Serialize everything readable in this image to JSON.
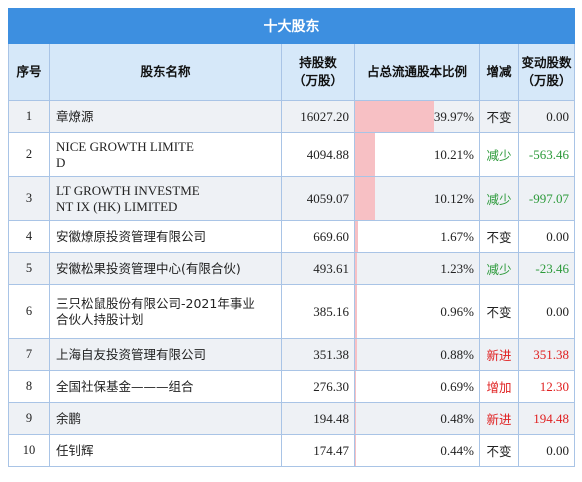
{
  "title": "十大股东",
  "headers": {
    "idx": "序号",
    "name": "股东名称",
    "shares": "持股数\n（万股）",
    "ratio": "占总流通股本比例",
    "change": "增减",
    "delta": "变动股数\n（万股）"
  },
  "rows": [
    {
      "idx": "1",
      "name": "章燎源",
      "latin": false,
      "shares": "16027.20",
      "ratio": "39.97%",
      "ratio_value": 39.97,
      "change": "不变",
      "change_type": "same",
      "delta": "0.00"
    },
    {
      "idx": "2",
      "name": "NICE GROWTH LIMITE\nD",
      "latin": true,
      "shares": "4094.88",
      "ratio": "10.21%",
      "ratio_value": 10.21,
      "change": "减少",
      "change_type": "down",
      "delta": "-563.46"
    },
    {
      "idx": "3",
      "name": "LT GROWTH INVESTME\nNT IX (HK) LIMITED",
      "latin": true,
      "shares": "4059.07",
      "ratio": "10.12%",
      "ratio_value": 10.12,
      "change": "减少",
      "change_type": "down",
      "delta": "-997.07"
    },
    {
      "idx": "4",
      "name": "安徽燎原投资管理有限公司",
      "latin": false,
      "shares": "669.60",
      "ratio": "1.67%",
      "ratio_value": 1.67,
      "change": "不变",
      "change_type": "same",
      "delta": "0.00"
    },
    {
      "idx": "5",
      "name": "安徽松果投资管理中心(有限合伙)",
      "latin": false,
      "shares": "493.61",
      "ratio": "1.23%",
      "ratio_value": 1.23,
      "change": "减少",
      "change_type": "down",
      "delta": "-23.46"
    },
    {
      "idx": "6",
      "name": "三只松鼠股份有限公司-2021年事业\n合伙人持股计划",
      "latin": false,
      "shares": "385.16",
      "ratio": "0.96%",
      "ratio_value": 0.96,
      "change": "不变",
      "change_type": "same",
      "delta": "0.00"
    },
    {
      "idx": "7",
      "name": "上海自友投资管理有限公司",
      "latin": false,
      "shares": "351.38",
      "ratio": "0.88%",
      "ratio_value": 0.88,
      "change": "新进",
      "change_type": "up",
      "delta": "351.38"
    },
    {
      "idx": "8",
      "name": "全国社保基金———组合",
      "latin": false,
      "shares": "276.30",
      "ratio": "0.69%",
      "ratio_value": 0.69,
      "change": "增加",
      "change_type": "up",
      "delta": "12.30"
    },
    {
      "idx": "9",
      "name": "余鹏",
      "latin": false,
      "shares": "194.48",
      "ratio": "0.48%",
      "ratio_value": 0.48,
      "change": "新进",
      "change_type": "up",
      "delta": "194.48"
    },
    {
      "idx": "10",
      "name": "任钊辉",
      "latin": false,
      "shares": "174.47",
      "ratio": "0.44%",
      "ratio_value": 0.44,
      "change": "不变",
      "change_type": "same",
      "delta": "0.00"
    }
  ],
  "colors": {
    "title_bg": "#3d8fe0",
    "header_bg": "#d6e8f9",
    "bar": "#f7c0c4",
    "down": "#2c9a3a",
    "up": "#e02020"
  }
}
